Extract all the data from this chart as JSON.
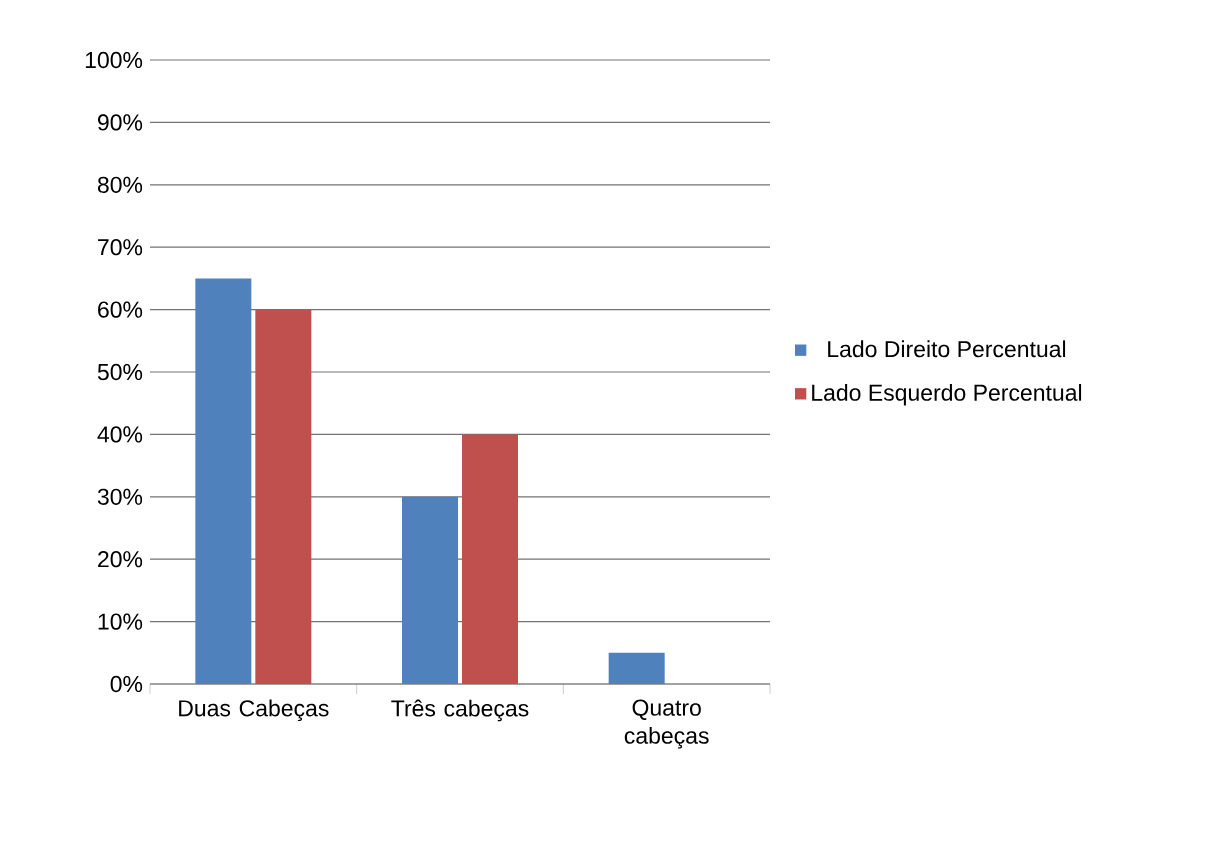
{
  "chart_data": {
    "type": "bar",
    "categories": [
      "Duas Cabeças",
      "Três cabeças",
      "Quatro cabeças"
    ],
    "series": [
      {
        "name": "Lado Direito Percentual",
        "color": "#4f81bd",
        "values": [
          65,
          30,
          5
        ]
      },
      {
        "name": "Lado Esquerdo Percentual",
        "color": "#c0504d",
        "values": [
          60,
          40,
          0
        ]
      }
    ],
    "ylim": [
      0,
      100
    ],
    "yticks": [
      {
        "value": 0,
        "label": "0%"
      },
      {
        "value": 10,
        "label": "10%"
      },
      {
        "value": 20,
        "label": "20%"
      },
      {
        "value": 30,
        "label": "30%"
      },
      {
        "value": 40,
        "label": "40%"
      },
      {
        "value": 50,
        "label": "50%"
      },
      {
        "value": 60,
        "label": "60%"
      },
      {
        "value": 70,
        "label": "70%"
      },
      {
        "value": 80,
        "label": "80%"
      },
      {
        "value": 90,
        "label": "90%"
      },
      {
        "value": 100,
        "label": "100%"
      }
    ],
    "grid": "y",
    "legend": "right"
  }
}
